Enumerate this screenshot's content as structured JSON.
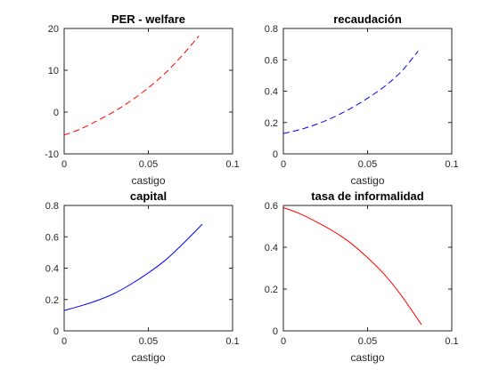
{
  "chart_data": [
    {
      "type": "line",
      "title": "PER - welfare",
      "xlabel": "castigo",
      "ylabel": "",
      "xlim": [
        0,
        0.1
      ],
      "ylim": [
        -10,
        20
      ],
      "xticks": [
        0,
        0.05,
        0.1
      ],
      "xtick_labels": [
        "0",
        "0.05",
        "0.1"
      ],
      "yticks": [
        -10,
        0,
        10,
        20
      ],
      "ytick_labels": [
        "-10",
        "0",
        "10",
        "20"
      ],
      "grid": false,
      "series": [
        {
          "color": "#ff0000",
          "line_style": "dashed",
          "x": [
            0,
            0.01,
            0.02,
            0.03,
            0.04,
            0.05,
            0.06,
            0.07,
            0.08
          ],
          "y": [
            -5.5,
            -4.0,
            -2.0,
            0.2,
            2.8,
            5.8,
            9.3,
            13.5,
            18.2
          ]
        }
      ]
    },
    {
      "type": "line",
      "title": "recaudación",
      "xlabel": "castigo",
      "ylabel": "",
      "xlim": [
        0,
        0.1
      ],
      "ylim": [
        0,
        0.8
      ],
      "xticks": [
        0,
        0.05,
        0.1
      ],
      "xtick_labels": [
        "0",
        "0.05",
        "0.1"
      ],
      "yticks": [
        0,
        0.2,
        0.4,
        0.6,
        0.8
      ],
      "ytick_labels": [
        "0",
        "0.2",
        "0.4",
        "0.6",
        "0.8"
      ],
      "grid": false,
      "series": [
        {
          "color": "#0000ff",
          "line_style": "dashed",
          "x": [
            0,
            0.01,
            0.02,
            0.03,
            0.04,
            0.05,
            0.06,
            0.07,
            0.08
          ],
          "y": [
            0.13,
            0.155,
            0.19,
            0.235,
            0.29,
            0.355,
            0.43,
            0.525,
            0.655
          ]
        }
      ]
    },
    {
      "type": "line",
      "title": "capital",
      "xlabel": "castigo",
      "ylabel": "",
      "xlim": [
        0,
        0.1
      ],
      "ylim": [
        0,
        0.8
      ],
      "xticks": [
        0,
        0.05,
        0.1
      ],
      "xtick_labels": [
        "0",
        "0.05",
        "0.1"
      ],
      "yticks": [
        0,
        0.2,
        0.4,
        0.6,
        0.8
      ],
      "ytick_labels": [
        "0",
        "0.2",
        "0.4",
        "0.6",
        "0.8"
      ],
      "grid": false,
      "series": [
        {
          "color": "#0000ff",
          "line_style": "solid",
          "x": [
            0,
            0.01,
            0.02,
            0.03,
            0.04,
            0.05,
            0.06,
            0.07,
            0.082
          ],
          "y": [
            0.13,
            0.16,
            0.195,
            0.24,
            0.3,
            0.37,
            0.45,
            0.55,
            0.68
          ]
        }
      ]
    },
    {
      "type": "line",
      "title": "tasa de informalidad",
      "xlabel": "castigo",
      "ylabel": "",
      "xlim": [
        0,
        0.1
      ],
      "ylim": [
        0,
        0.6
      ],
      "xticks": [
        0,
        0.05,
        0.1
      ],
      "xtick_labels": [
        "0",
        "0.05",
        "0.1"
      ],
      "yticks": [
        0,
        0.2,
        0.4,
        0.6
      ],
      "ytick_labels": [
        "0",
        "0.2",
        "0.4",
        "0.6"
      ],
      "grid": false,
      "series": [
        {
          "color": "#ff0000",
          "line_style": "solid",
          "x": [
            0,
            0.01,
            0.02,
            0.03,
            0.04,
            0.05,
            0.06,
            0.07,
            0.082
          ],
          "y": [
            0.59,
            0.56,
            0.52,
            0.475,
            0.42,
            0.35,
            0.27,
            0.17,
            0.03
          ]
        }
      ]
    }
  ]
}
